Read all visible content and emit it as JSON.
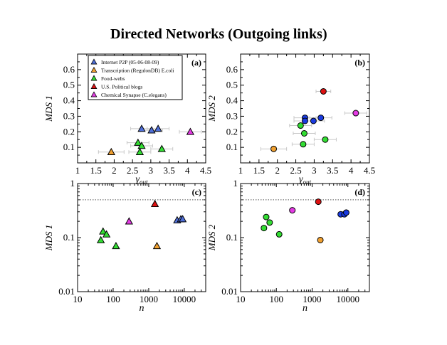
{
  "figure_title": "Directed Networks (Outgoing links)",
  "colors": {
    "internet": "#4f6fd8",
    "transcription": "#f0a030",
    "foodwebs": "#33dd33",
    "political": "#dd1111",
    "synapse": "#e43be4",
    "blue_dot": "#1a3be0",
    "errorbar": "#c8c8c8",
    "dotted_line": "#555555"
  },
  "legend": [
    {
      "label": "Internet P2P (05-06-08-09)",
      "color_key": "internet"
    },
    {
      "label": "Transcription (RegulonDB) E.coli",
      "color_key": "transcription"
    },
    {
      "label": "Food-webs",
      "color_key": "foodwebs"
    },
    {
      "label": "U.S. Political blogs",
      "color_key": "political"
    },
    {
      "label": "Chemical Synapse (C.elegans)",
      "color_key": "synapse"
    }
  ],
  "chart_data": [
    {
      "id": "a",
      "panel_label": "(a)",
      "type": "scatter",
      "xlabel": "γ",
      "xlabel_sub": "out",
      "ylabel": "MDS 1",
      "xlim": [
        1,
        4.5
      ],
      "ylim": [
        0,
        0.7
      ],
      "marker": "triangle",
      "xticks": [
        {
          "v": 1,
          "t": "1"
        },
        {
          "v": 1.5,
          "t": "1.5"
        },
        {
          "v": 2,
          "t": "2"
        },
        {
          "v": 2.5,
          "t": "2.5"
        },
        {
          "v": 3,
          "t": "3"
        },
        {
          "v": 3.5,
          "t": "3.5"
        },
        {
          "v": 4,
          "t": "4"
        },
        {
          "v": 4.5,
          "t": "4.5"
        }
      ],
      "yticks": [
        {
          "v": 0.1,
          "t": "0.1"
        },
        {
          "v": 0.2,
          "t": "0.2"
        },
        {
          "v": 0.3,
          "t": "0.3"
        },
        {
          "v": 0.4,
          "t": "0.4"
        },
        {
          "v": 0.5,
          "t": "0.5"
        },
        {
          "v": 0.6,
          "t": "0.6"
        }
      ],
      "points": [
        {
          "group": "internet",
          "x": 2.75,
          "y": 0.22,
          "xerr": 0.3
        },
        {
          "group": "internet",
          "x": 3.02,
          "y": 0.21,
          "xerr": 0.3
        },
        {
          "group": "internet",
          "x": 3.2,
          "y": 0.22,
          "xerr": 0.3
        },
        {
          "group": "transcription",
          "x": 1.92,
          "y": 0.07,
          "xerr": 0.35
        },
        {
          "group": "foodwebs",
          "x": 2.65,
          "y": 0.13,
          "xerr": 0.3
        },
        {
          "group": "foodwebs",
          "x": 2.75,
          "y": 0.11,
          "xerr": 0.3
        },
        {
          "group": "foodwebs",
          "x": 2.7,
          "y": 0.07,
          "xerr": 0.3
        },
        {
          "group": "foodwebs",
          "x": 3.3,
          "y": 0.09,
          "xerr": 0.3
        },
        {
          "group": "synapse",
          "x": 4.08,
          "y": 0.2,
          "xerr": 0.3
        }
      ]
    },
    {
      "id": "b",
      "panel_label": "(b)",
      "type": "scatter",
      "xlabel": "γ",
      "xlabel_sub": "out",
      "ylabel": "MDS 2",
      "xlim": [
        1,
        4.5
      ],
      "ylim": [
        0,
        0.7
      ],
      "marker": "circle",
      "xticks": [
        {
          "v": 1,
          "t": "1"
        },
        {
          "v": 1.5,
          "t": "1.5"
        },
        {
          "v": 2,
          "t": "2"
        },
        {
          "v": 2.5,
          "t": "2.5"
        },
        {
          "v": 3,
          "t": "3"
        },
        {
          "v": 3.5,
          "t": "3.5"
        },
        {
          "v": 4,
          "t": "4"
        },
        {
          "v": 4.5,
          "t": "4.5"
        }
      ],
      "yticks": [
        {
          "v": 0.1,
          "t": "0.1"
        },
        {
          "v": 0.2,
          "t": "0.2"
        },
        {
          "v": 0.3,
          "t": "0.3"
        },
        {
          "v": 0.4,
          "t": "0.4"
        },
        {
          "v": 0.5,
          "t": "0.5"
        },
        {
          "v": 0.6,
          "t": "0.6"
        }
      ],
      "points": [
        {
          "group": "blue_dot",
          "x": 2.75,
          "y": 0.29,
          "xerr": 0.3
        },
        {
          "group": "blue_dot",
          "x": 2.75,
          "y": 0.27,
          "xerr": 0.3
        },
        {
          "group": "blue_dot",
          "x": 2.98,
          "y": 0.27,
          "xerr": 0.3
        },
        {
          "group": "blue_dot",
          "x": 3.18,
          "y": 0.29,
          "xerr": 0.3
        },
        {
          "group": "political",
          "x": 3.25,
          "y": 0.46,
          "xerr": 0.2
        },
        {
          "group": "foodwebs",
          "x": 2.63,
          "y": 0.24,
          "xerr": 0.3
        },
        {
          "group": "foodwebs",
          "x": 2.73,
          "y": 0.19,
          "xerr": 0.3
        },
        {
          "group": "foodwebs",
          "x": 2.7,
          "y": 0.12,
          "xerr": 0.3
        },
        {
          "group": "foodwebs",
          "x": 3.3,
          "y": 0.15,
          "xerr": 0.3
        },
        {
          "group": "transcription",
          "x": 1.9,
          "y": 0.09,
          "xerr": 0.35
        },
        {
          "group": "synapse",
          "x": 4.13,
          "y": 0.32,
          "xerr": 0.3
        }
      ]
    },
    {
      "id": "c",
      "panel_label": "(c)",
      "type": "scatter",
      "xscale": "log",
      "yscale": "log",
      "xlabel": "n",
      "ylabel": "MDS 1",
      "xlim": [
        10,
        40000
      ],
      "ylim": [
        0.01,
        1
      ],
      "marker": "triangle",
      "reference_line_y": 0.5,
      "xticks": [
        {
          "v": 10,
          "t": "10"
        },
        {
          "v": 100,
          "t": "100"
        },
        {
          "v": 1000,
          "t": "1000"
        },
        {
          "v": 10000,
          "t": "10000"
        }
      ],
      "yticks": [
        {
          "v": 0.01,
          "t": "0.01"
        },
        {
          "v": 0.1,
          "t": "0.1"
        },
        {
          "v": 1,
          "t": "1"
        }
      ],
      "points": [
        {
          "group": "foodwebs",
          "x": 45,
          "y": 0.09
        },
        {
          "group": "foodwebs",
          "x": 52,
          "y": 0.13
        },
        {
          "group": "foodwebs",
          "x": 65,
          "y": 0.115
        },
        {
          "group": "foodwebs",
          "x": 120,
          "y": 0.07
        },
        {
          "group": "synapse",
          "x": 280,
          "y": 0.2
        },
        {
          "group": "political",
          "x": 1490,
          "y": 0.42
        },
        {
          "group": "transcription",
          "x": 1700,
          "y": 0.07
        },
        {
          "group": "internet",
          "x": 6300,
          "y": 0.21
        },
        {
          "group": "internet",
          "x": 8000,
          "y": 0.22
        },
        {
          "group": "internet",
          "x": 9000,
          "y": 0.22
        }
      ]
    },
    {
      "id": "d",
      "panel_label": "(d)",
      "type": "scatter",
      "xscale": "log",
      "yscale": "log",
      "xlabel": "n",
      "ylabel": "MDS 2",
      "xlim": [
        10,
        40000
      ],
      "ylim": [
        0.01,
        1
      ],
      "marker": "circle",
      "reference_line_y": 0.5,
      "xticks": [
        {
          "v": 10,
          "t": "10"
        },
        {
          "v": 100,
          "t": "100"
        },
        {
          "v": 1000,
          "t": "1000"
        },
        {
          "v": 10000,
          "t": "10000"
        }
      ],
      "yticks": [
        {
          "v": 0.01,
          "t": "0.01"
        },
        {
          "v": 0.1,
          "t": "0.1"
        },
        {
          "v": 1,
          "t": "1"
        }
      ],
      "points": [
        {
          "group": "foodwebs",
          "x": 45,
          "y": 0.15
        },
        {
          "group": "foodwebs",
          "x": 52,
          "y": 0.24
        },
        {
          "group": "foodwebs",
          "x": 65,
          "y": 0.19
        },
        {
          "group": "foodwebs",
          "x": 120,
          "y": 0.115
        },
        {
          "group": "synapse",
          "x": 280,
          "y": 0.32
        },
        {
          "group": "political",
          "x": 1490,
          "y": 0.46
        },
        {
          "group": "transcription",
          "x": 1700,
          "y": 0.09
        },
        {
          "group": "blue_dot",
          "x": 6300,
          "y": 0.27
        },
        {
          "group": "blue_dot",
          "x": 8000,
          "y": 0.27
        },
        {
          "group": "blue_dot",
          "x": 9000,
          "y": 0.29
        }
      ]
    }
  ]
}
